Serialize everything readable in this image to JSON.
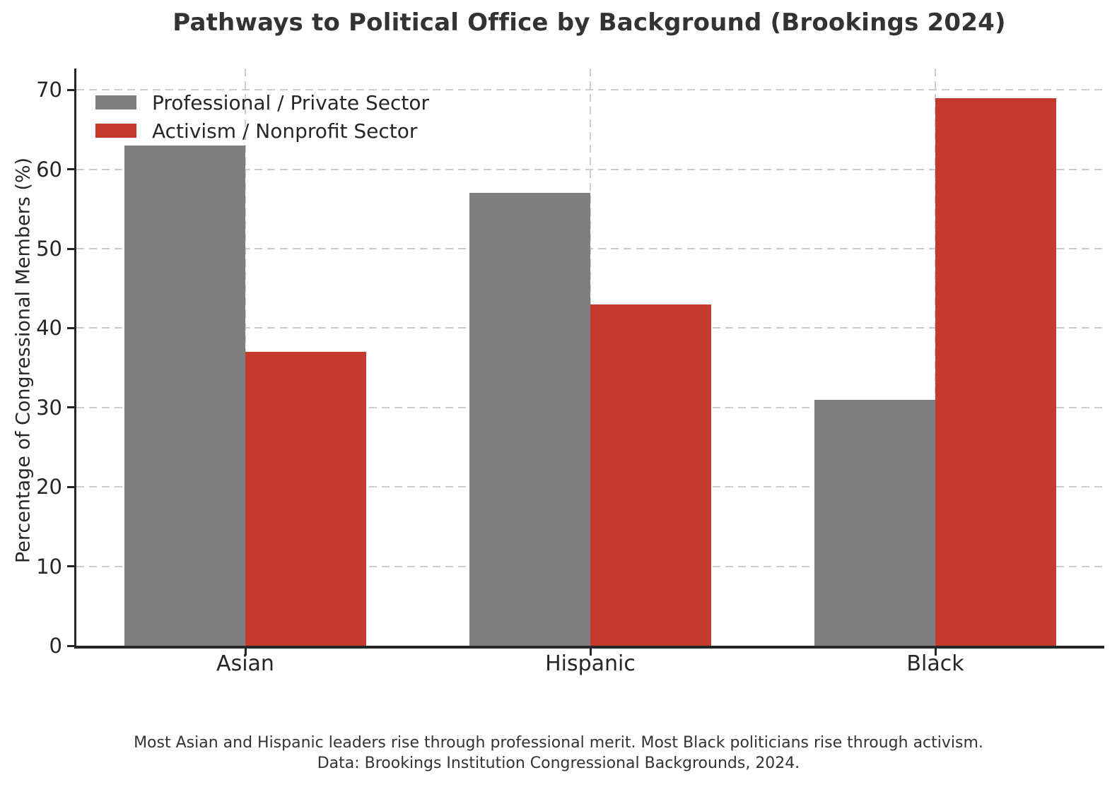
{
  "chart_data": {
    "type": "bar",
    "title": "Pathways to Political Office by Background (Brookings 2024)",
    "ylabel": "Percentage of Congressional Members (%)",
    "xlabel": "",
    "categories": [
      "Asian",
      "Hispanic",
      "Black"
    ],
    "series": [
      {
        "name": "Professional / Private Sector",
        "color": "#7f7f7f",
        "values": [
          63,
          57,
          31
        ]
      },
      {
        "name": "Activism / Nonprofit Sector",
        "color": "#c23b2c",
        "values": [
          37,
          43,
          69
        ]
      }
    ],
    "ylim": [
      0,
      72.7
    ],
    "yticks": [
      0,
      10,
      20,
      30,
      40,
      50,
      60,
      70
    ],
    "grid": "dashed, horizontal and vertical",
    "grid_color": "#cdcdcd",
    "legend_position": "upper left",
    "axis_text_color": "#262626",
    "title_color": "#333333",
    "caption_line1": "Most Asian and Hispanic leaders rise through professional merit. Most Black politicians rise through activism.",
    "caption_line2": "Data: Brookings Institution Congressional Backgrounds, 2024."
  }
}
